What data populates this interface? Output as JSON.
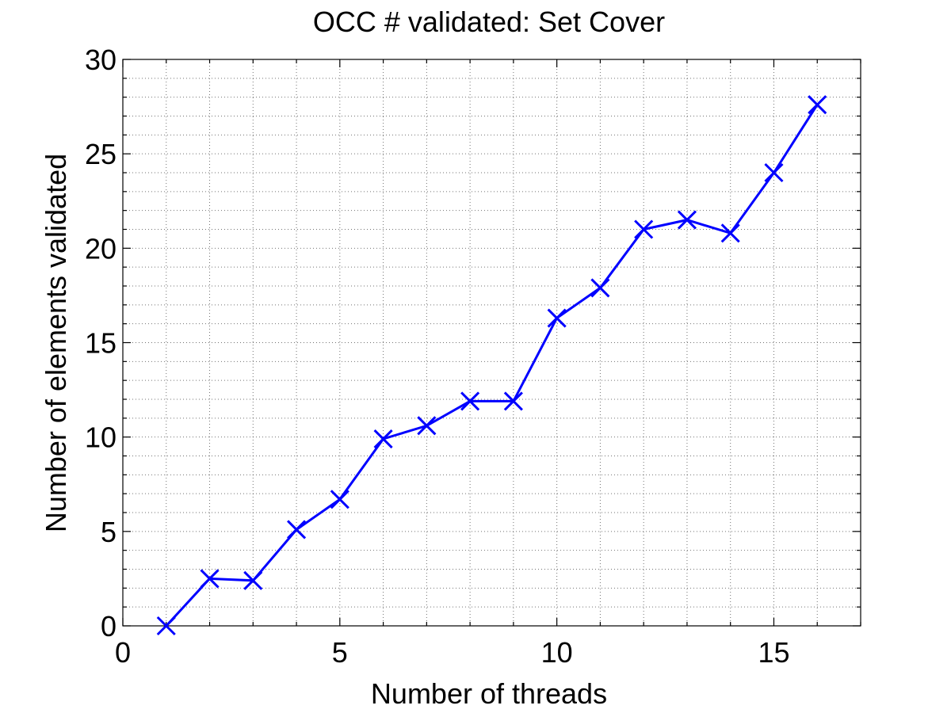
{
  "chart_data": {
    "type": "line",
    "title": "OCC # validated: Set Cover",
    "xlabel": "Number of threads",
    "ylabel": "Number of elements validated",
    "xlim": [
      0,
      17
    ],
    "ylim": [
      0,
      30
    ],
    "xticks": [
      0,
      5,
      10,
      15
    ],
    "yticks": [
      0,
      5,
      10,
      15,
      20,
      25,
      30
    ],
    "grid": true,
    "minor_grid": true,
    "legend": "none",
    "series": [
      {
        "color": "#0000ff",
        "marker": "x",
        "x": [
          1,
          2,
          3,
          4,
          5,
          6,
          7,
          8,
          9,
          10,
          11,
          12,
          13,
          14,
          15,
          16
        ],
        "y": [
          0,
          2.5,
          2.4,
          5.1,
          6.7,
          9.9,
          10.6,
          11.9,
          11.9,
          16.3,
          17.9,
          21.0,
          21.5,
          20.8,
          24.0,
          27.6
        ]
      }
    ]
  }
}
